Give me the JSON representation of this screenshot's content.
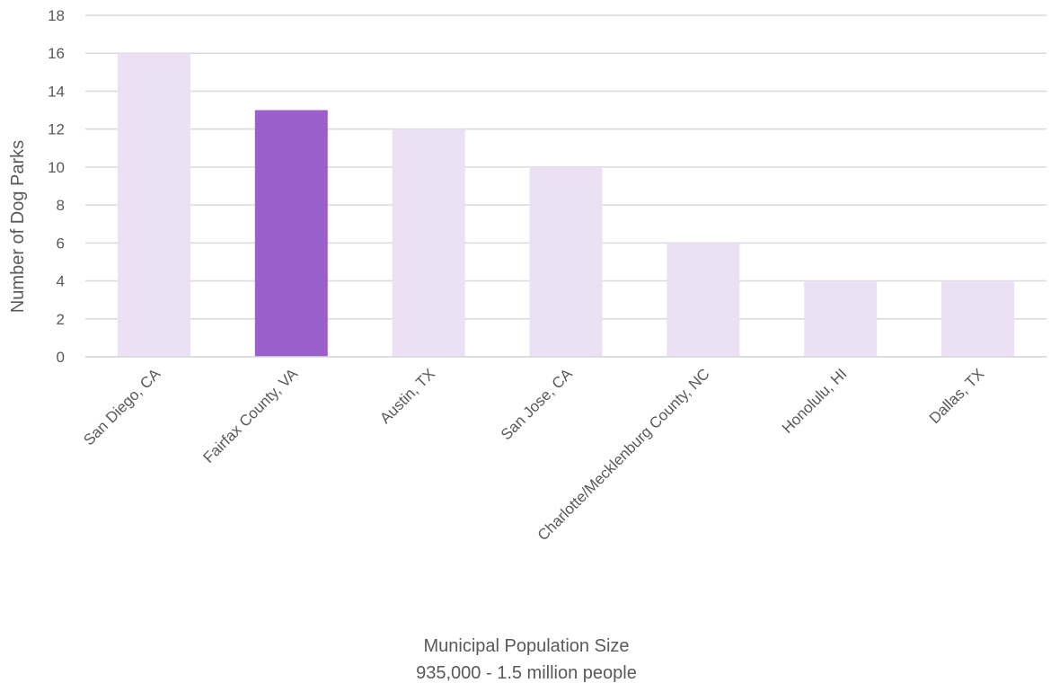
{
  "chart_data": {
    "type": "bar",
    "categories": [
      "San Diego, CA",
      "Fairfax County, VA",
      "Austin, TX",
      "San Jose, CA",
      "Charlotte/Mecklenburg County, NC",
      "Honolulu, HI",
      "Dallas, TX"
    ],
    "values": [
      16,
      13,
      12,
      10,
      6,
      4,
      4
    ],
    "highlight_index": 1,
    "colors": {
      "bar": "#ece0f4",
      "highlight": "#9b5fcc",
      "grid": "#d9d9d9",
      "text": "#595959"
    },
    "ylabel": "Number of Dog Parks",
    "xlabel_line1": "Municipal Population Size",
    "xlabel_line2": "935,000 - 1.5 million people",
    "ylim": [
      0,
      18
    ],
    "ytick_step": 2,
    "grid": true,
    "legend": "none"
  }
}
